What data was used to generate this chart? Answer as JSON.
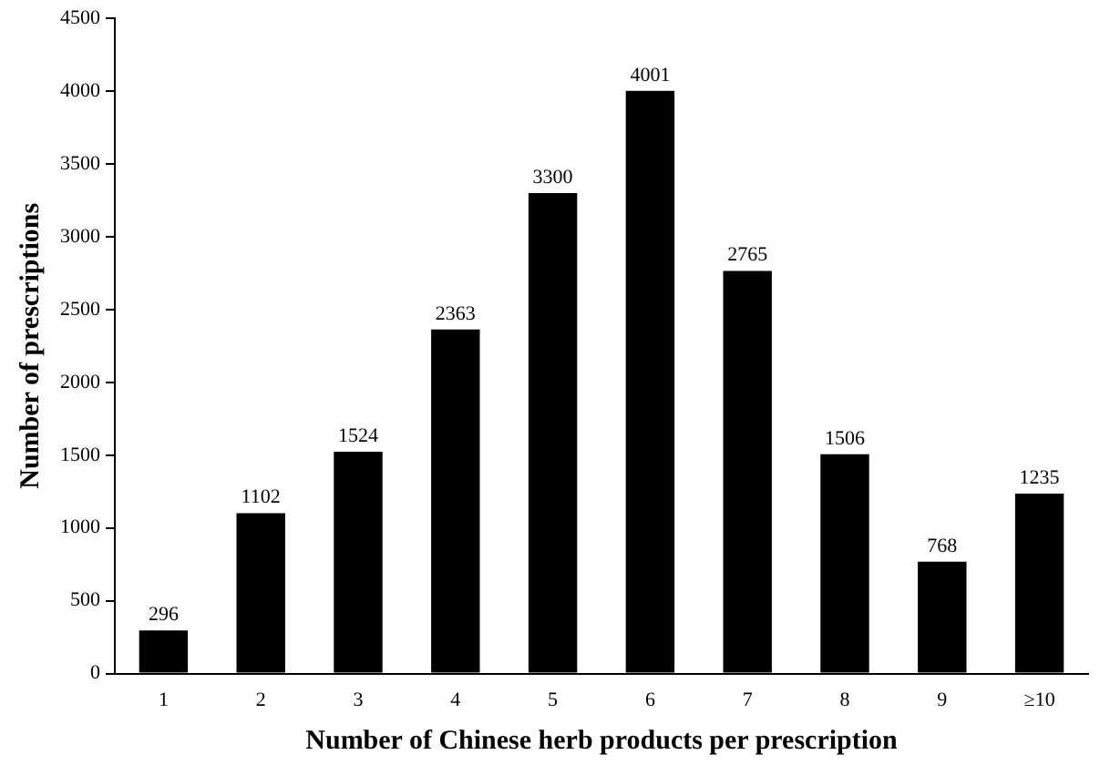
{
  "chart_data": {
    "type": "bar",
    "xlabel": "Number of Chinese herb products per prescription",
    "ylabel": "Number of prescriptions",
    "categories": [
      "1",
      "2",
      "3",
      "4",
      "5",
      "6",
      "7",
      "8",
      "9",
      "≥10"
    ],
    "values": [
      296,
      1102,
      1524,
      2363,
      3300,
      4001,
      2765,
      1506,
      768,
      1235
    ],
    "color": "#000000",
    "ylim": [
      0,
      4500
    ],
    "yticks": [
      0,
      500,
      1000,
      1500,
      2000,
      2500,
      3000,
      3500,
      4000,
      4500
    ],
    "grid": false,
    "data_labels": true
  }
}
